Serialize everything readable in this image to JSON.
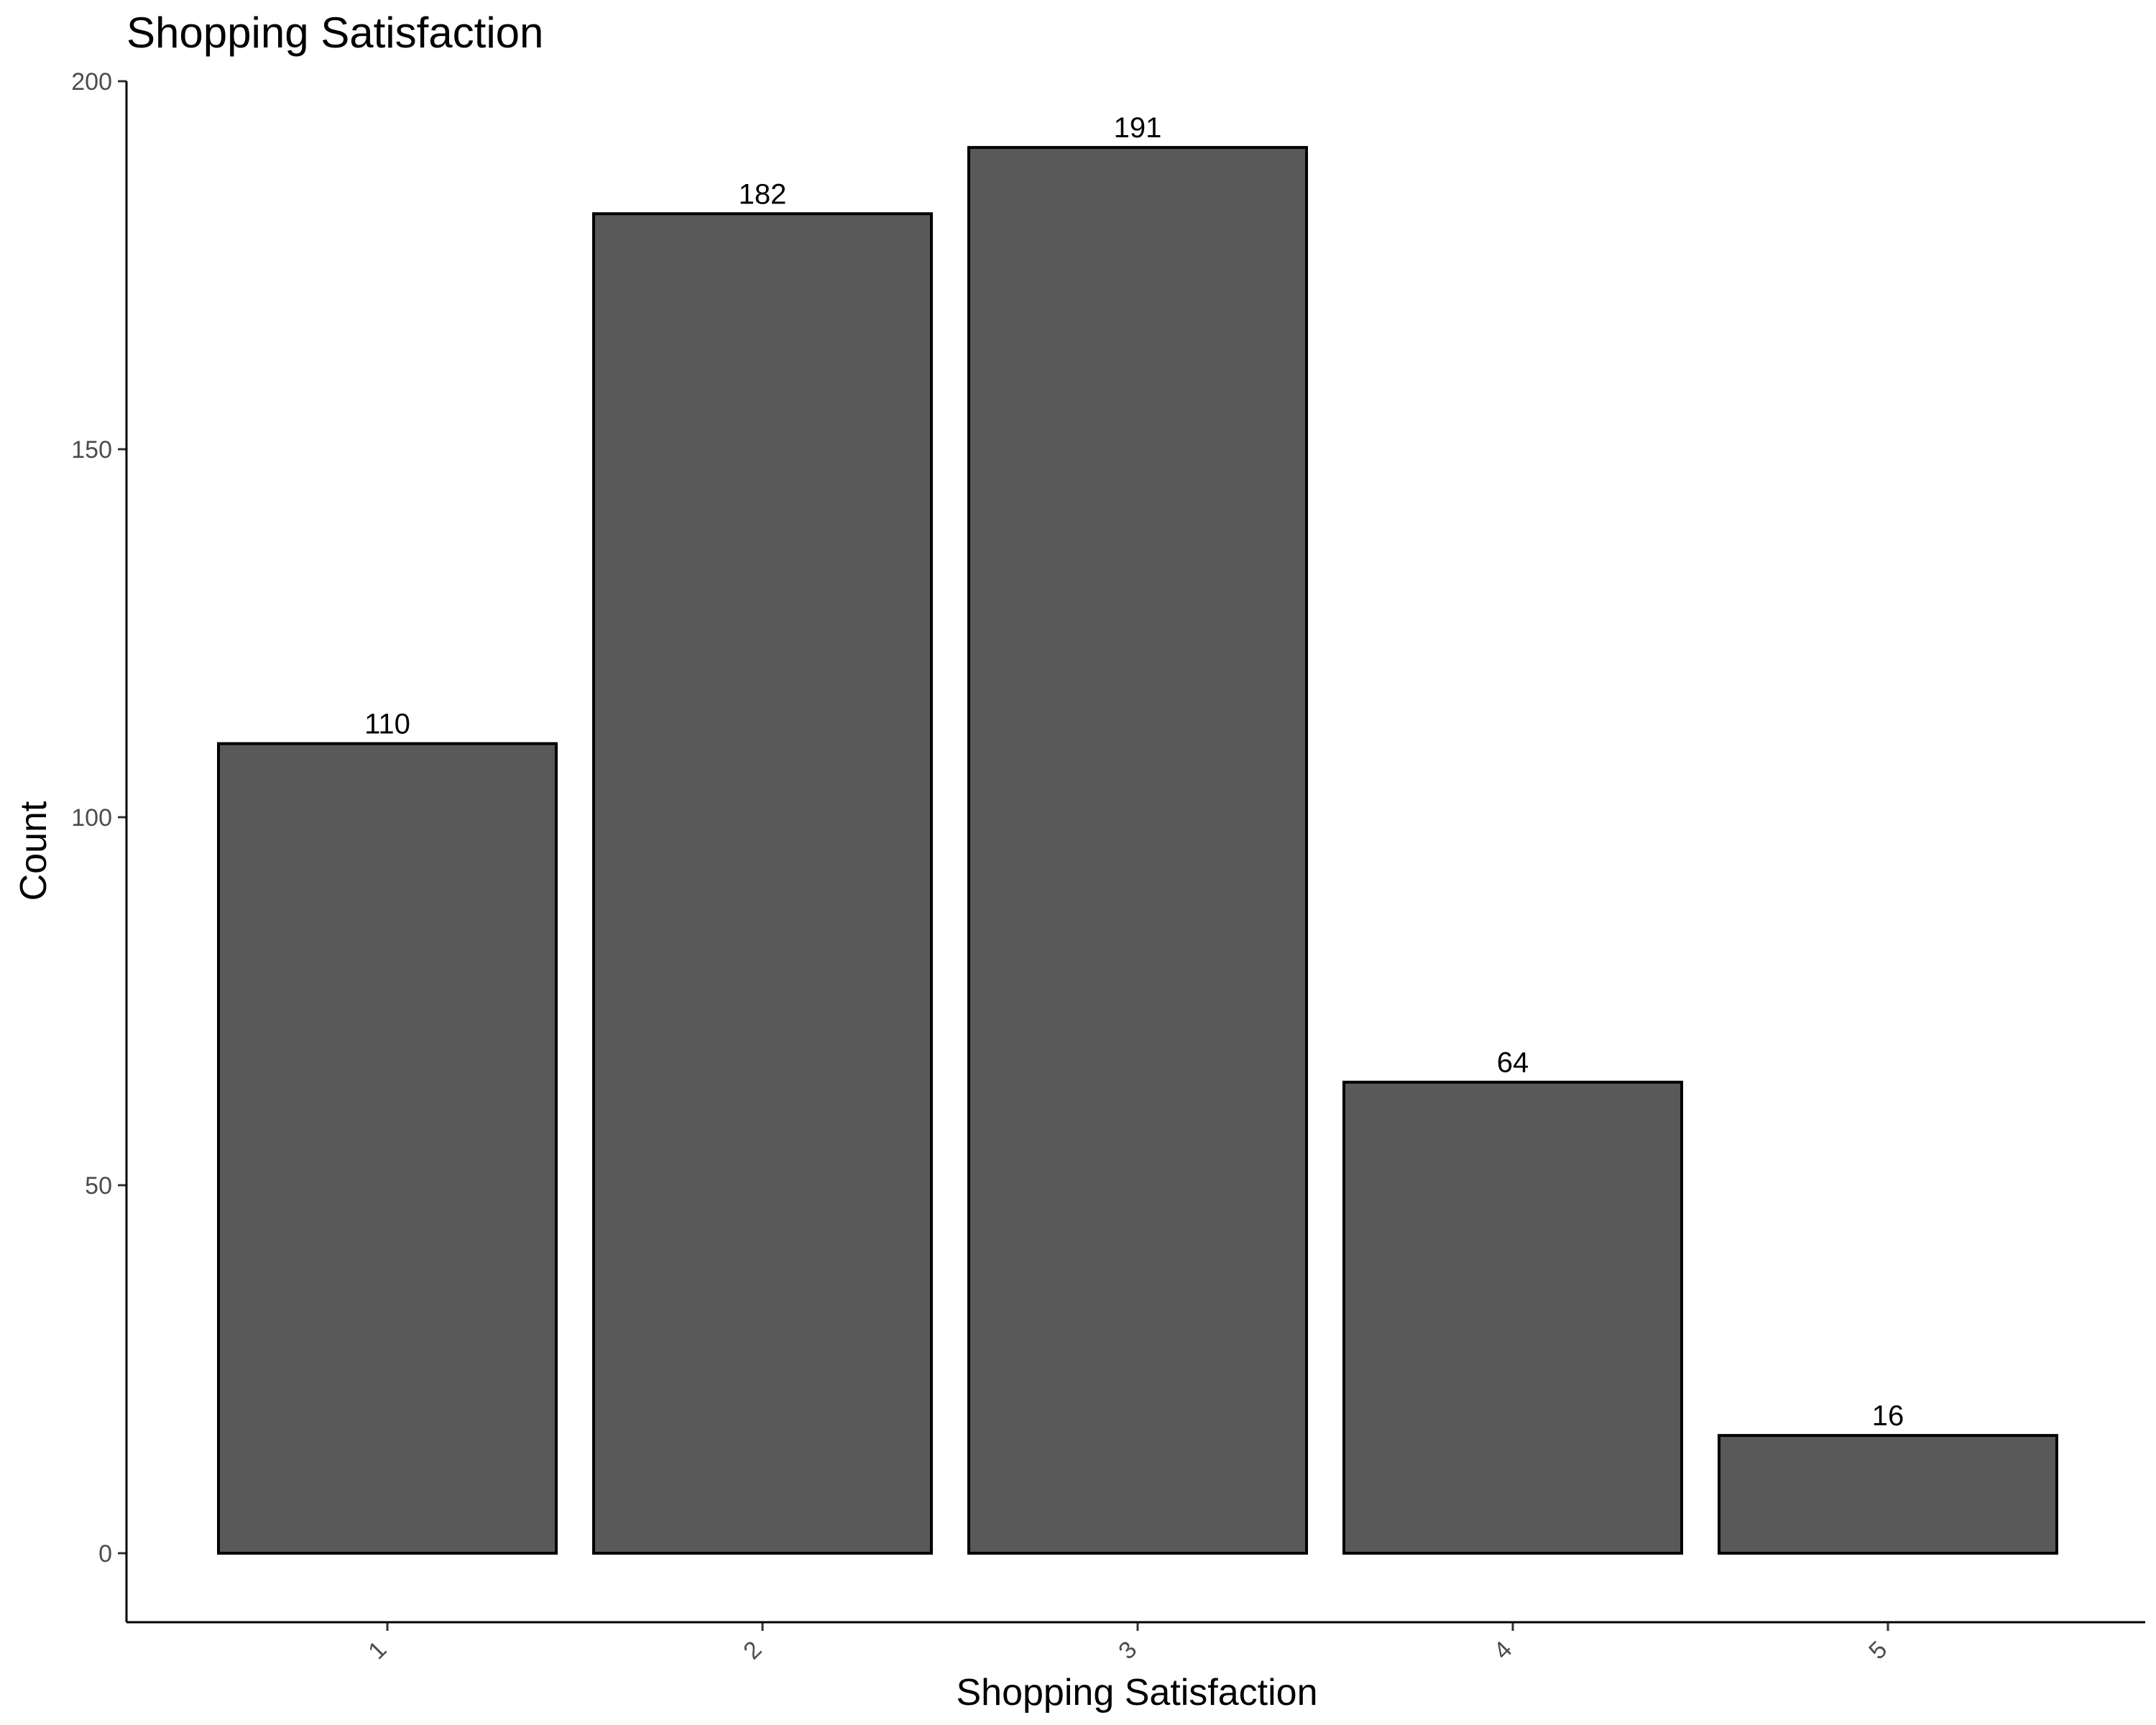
{
  "chart_data": {
    "type": "bar",
    "title": "Shopping Satisfaction",
    "xlabel": "Shopping Satisfaction",
    "ylabel": "Count",
    "categories": [
      "1",
      "2",
      "3",
      "4",
      "5"
    ],
    "values": [
      110,
      182,
      191,
      64,
      16
    ],
    "data_labels": [
      "110",
      "182",
      "191",
      "64",
      "16"
    ],
    "y_ticks": [
      0,
      50,
      100,
      150,
      200
    ],
    "ylim": [
      -10,
      200
    ],
    "grid": false,
    "legend": "none",
    "x_tick_rotation": "45 degrees",
    "colors": {
      "bar_fill": "#595959",
      "bar_outline": "#000000",
      "background": "#ffffff"
    }
  }
}
